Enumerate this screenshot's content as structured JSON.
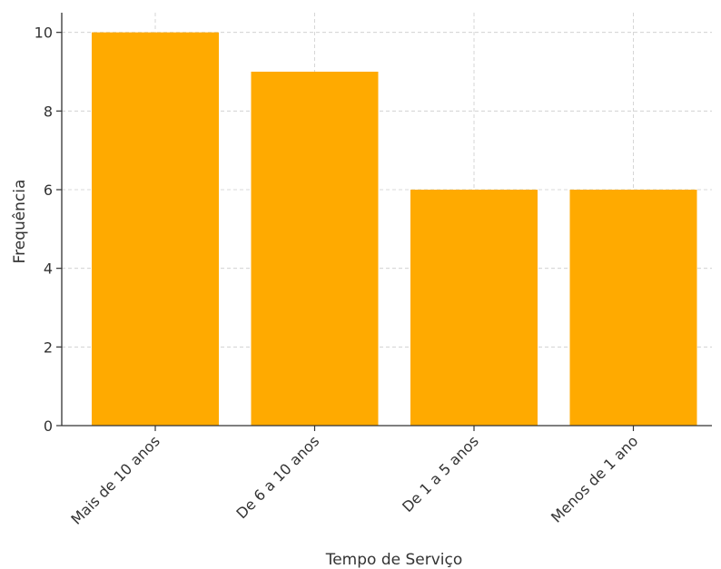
{
  "chart_data": {
    "type": "bar",
    "title": "",
    "xlabel": "Tempo de Serviço",
    "ylabel": "Frequência",
    "categories": [
      "Mais de 10 anos",
      "De 6 a 10 anos",
      "De 1 a 5 anos",
      "Menos de 1 ano"
    ],
    "values": [
      10,
      9,
      6,
      6
    ],
    "ylim": [
      0,
      10.5
    ],
    "yticks": [
      0,
      2,
      4,
      6,
      8,
      10
    ],
    "grid": true,
    "bar_color": "#FFAA00",
    "grid_color": "#cccccc",
    "axis_color": "#333333"
  }
}
